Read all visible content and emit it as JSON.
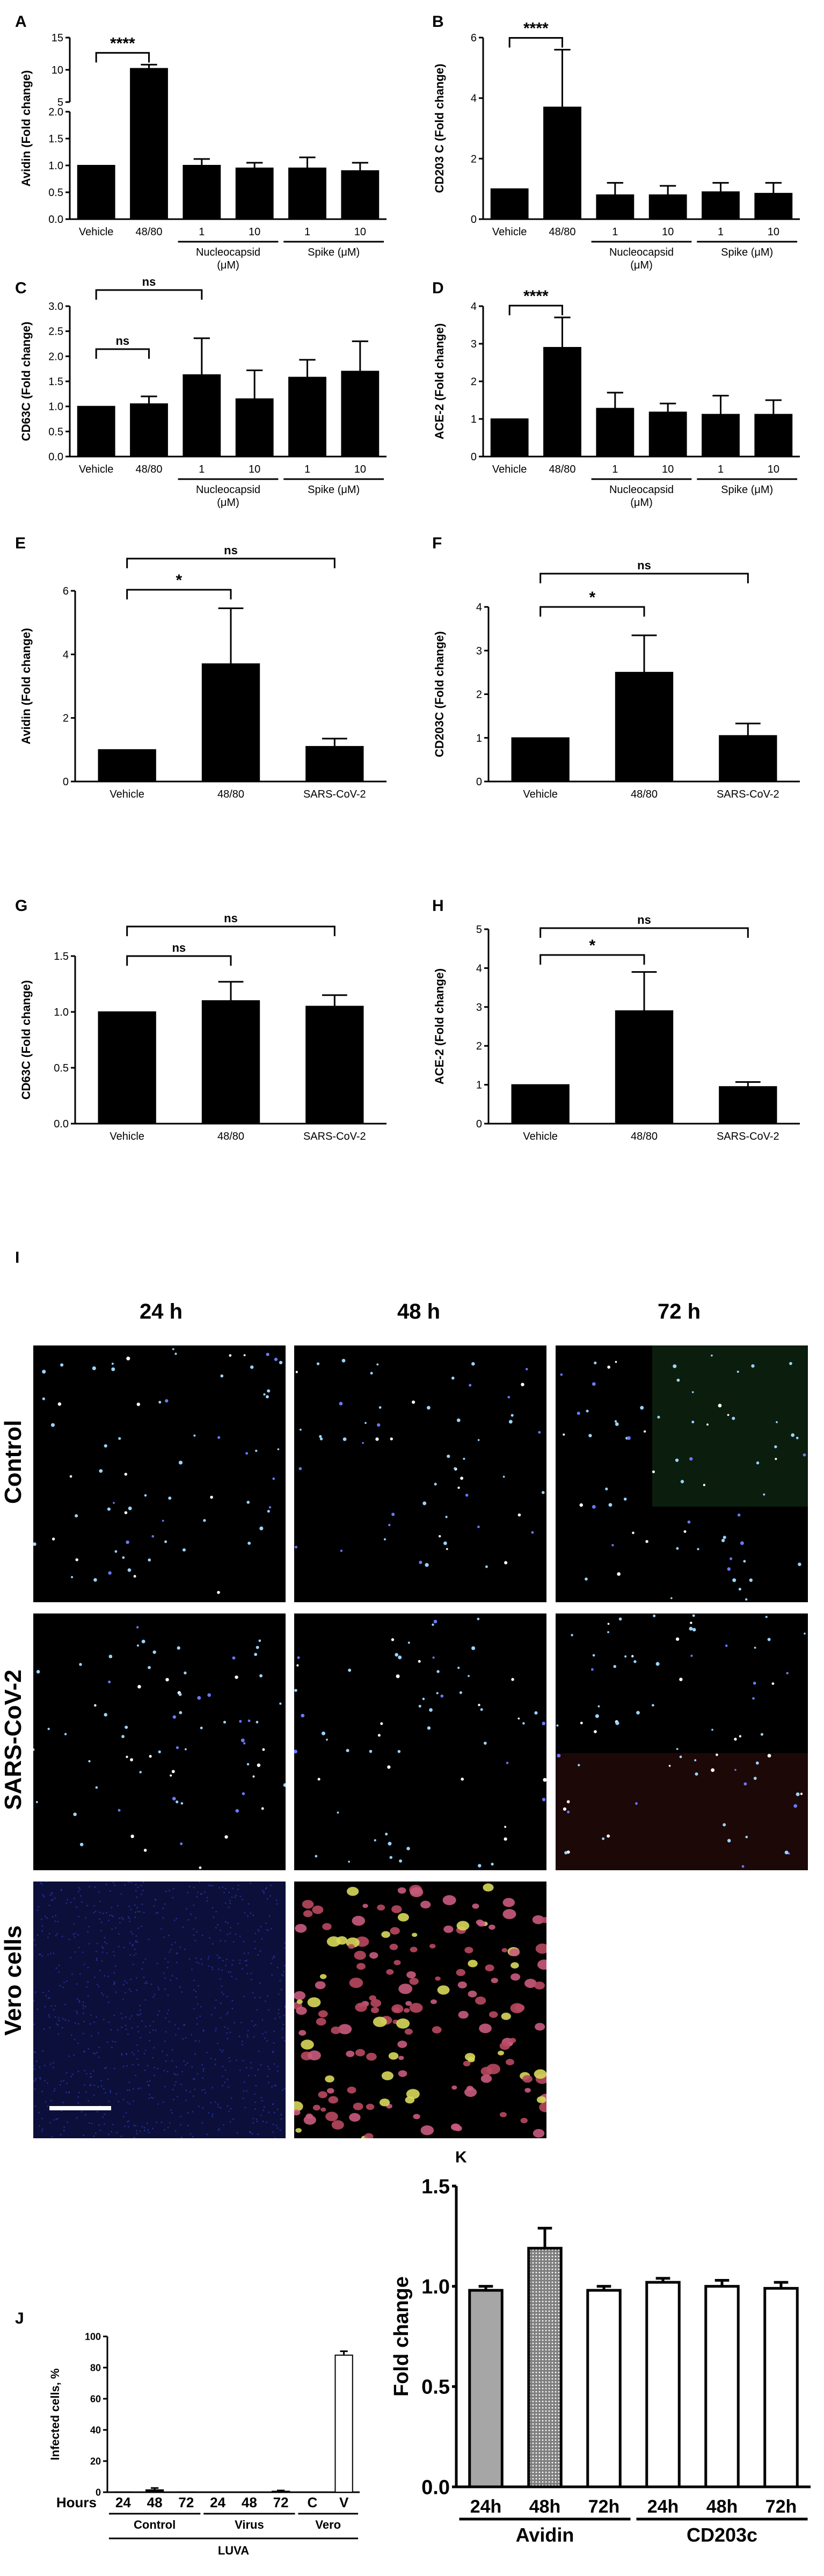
{
  "chart_data": [
    {
      "panel": "A",
      "type": "bar",
      "broken_axis": true,
      "categories": [
        "Vehicle",
        "48/80",
        "1",
        "10",
        "1",
        "10"
      ],
      "values": [
        1.0,
        10.2,
        1.0,
        0.95,
        0.95,
        0.9
      ],
      "errors": [
        0,
        0.6,
        0.12,
        0.1,
        0.2,
        0.15
      ],
      "groups": [
        {
          "label": "Nucleocapsid",
          "sublabel": "(μM)",
          "span": [
            2,
            3
          ]
        },
        {
          "label": "Spike (μM)",
          "span": [
            4,
            5
          ]
        }
      ],
      "ylabel": "Avidin (Fold change)",
      "ylim": [
        0,
        15
      ],
      "yticks": [
        "0.0",
        "0.5",
        "1.0",
        "1.5",
        "2.0",
        "5",
        "10",
        "15"
      ],
      "comparisons": [
        {
          "from": 0,
          "to": 1,
          "label": "****"
        }
      ]
    },
    {
      "panel": "B",
      "type": "bar",
      "categories": [
        "Vehicle",
        "48/80",
        "1",
        "10",
        "1",
        "10"
      ],
      "values": [
        1.0,
        3.7,
        0.8,
        0.8,
        0.9,
        0.85
      ],
      "errors": [
        0,
        1.9,
        0.4,
        0.3,
        0.3,
        0.35
      ],
      "groups": [
        {
          "label": "Nucleocapsid",
          "sublabel": "(μM)",
          "span": [
            2,
            3
          ]
        },
        {
          "label": "Spike (μM)",
          "span": [
            4,
            5
          ]
        }
      ],
      "ylabel": "CD203 C (Fold change)",
      "ylim": [
        0,
        6
      ],
      "yticks": [
        "0",
        "2",
        "4",
        "6"
      ],
      "comparisons": [
        {
          "from": 0,
          "to": 1,
          "label": "****"
        }
      ]
    },
    {
      "panel": "C",
      "type": "bar",
      "categories": [
        "Vehicle",
        "48/80",
        "1",
        "10",
        "1",
        "10"
      ],
      "values": [
        1.0,
        1.05,
        1.63,
        1.15,
        1.58,
        1.7
      ],
      "errors": [
        0,
        0.15,
        0.73,
        0.57,
        0.35,
        0.6
      ],
      "groups": [
        {
          "label": "Nucleocapsid",
          "sublabel": "(μM)",
          "span": [
            2,
            3
          ]
        },
        {
          "label": "Spike (μM)",
          "span": [
            4,
            5
          ]
        }
      ],
      "ylabel": "CD63C (Fold change)",
      "ylim": [
        0,
        3
      ],
      "yticks": [
        "0.0",
        "0.5",
        "1.0",
        "1.5",
        "2.0",
        "2.5",
        "3.0"
      ],
      "comparisons": [
        {
          "from": 0,
          "to": 1,
          "label": "ns"
        },
        {
          "from": 0,
          "to": 2,
          "label": "ns"
        }
      ]
    },
    {
      "panel": "D",
      "type": "bar",
      "categories": [
        "Vehicle",
        "48/80",
        "1",
        "10",
        "1",
        "10"
      ],
      "values": [
        1.0,
        2.9,
        1.28,
        1.18,
        1.12,
        1.12
      ],
      "errors": [
        0,
        0.8,
        0.42,
        0.23,
        0.5,
        0.38
      ],
      "groups": [
        {
          "label": "Nucleocapsid",
          "sublabel": "(μM)",
          "span": [
            2,
            3
          ]
        },
        {
          "label": "Spike (μM)",
          "span": [
            4,
            5
          ]
        }
      ],
      "ylabel": "ACE-2 (Fold change)",
      "ylim": [
        0,
        4
      ],
      "yticks": [
        "0",
        "1",
        "2",
        "3",
        "4"
      ],
      "comparisons": [
        {
          "from": 0,
          "to": 1,
          "label": "****"
        }
      ]
    },
    {
      "panel": "E",
      "type": "bar",
      "categories": [
        "Vehicle",
        "48/80",
        "SARS-CoV-2"
      ],
      "values": [
        1.0,
        3.7,
        1.1
      ],
      "errors": [
        0,
        1.75,
        0.25
      ],
      "ylabel": "Avidin (Fold change)",
      "ylim": [
        0,
        6
      ],
      "yticks": [
        "0",
        "2",
        "4",
        "6"
      ],
      "comparisons": [
        {
          "from": 0,
          "to": 1,
          "label": "*"
        },
        {
          "from": 0,
          "to": 2,
          "label": "ns"
        }
      ]
    },
    {
      "panel": "F",
      "type": "bar",
      "categories": [
        "Vehicle",
        "48/80",
        "SARS-CoV-2"
      ],
      "values": [
        1.0,
        2.5,
        1.05
      ],
      "errors": [
        0,
        0.85,
        0.28
      ],
      "ylabel": "CD203C (Fold change)",
      "ylim": [
        0,
        4
      ],
      "yticks": [
        "0",
        "1",
        "2",
        "3",
        "4"
      ],
      "comparisons": [
        {
          "from": 0,
          "to": 1,
          "label": "*"
        },
        {
          "from": 0,
          "to": 2,
          "label": "ns"
        }
      ]
    },
    {
      "panel": "G",
      "type": "bar",
      "categories": [
        "Vehicle",
        "48/80",
        "SARS-CoV-2"
      ],
      "values": [
        1.0,
        1.1,
        1.05
      ],
      "errors": [
        0,
        0.17,
        0.1
      ],
      "ylabel": "CD63C (Fold change)",
      "ylim": [
        0,
        1.5
      ],
      "yticks": [
        "0.0",
        "0.5",
        "1.0",
        "1.5"
      ],
      "comparisons": [
        {
          "from": 0,
          "to": 1,
          "label": "ns"
        },
        {
          "from": 0,
          "to": 2,
          "label": "ns"
        }
      ]
    },
    {
      "panel": "H",
      "type": "bar",
      "categories": [
        "Vehicle",
        "48/80",
        "SARS-CoV-2"
      ],
      "values": [
        1.0,
        2.9,
        0.95
      ],
      "errors": [
        0,
        1.0,
        0.12
      ],
      "ylabel": "ACE-2 (Fold change)",
      "ylim": [
        0,
        5
      ],
      "yticks": [
        "0",
        "1",
        "2",
        "3",
        "4",
        "5"
      ],
      "comparisons": [
        {
          "from": 0,
          "to": 1,
          "label": "*"
        },
        {
          "from": 0,
          "to": 2,
          "label": "ns"
        }
      ]
    },
    {
      "panel": "J",
      "type": "bar",
      "categories": [
        "24",
        "48",
        "72",
        "24",
        "48",
        "72",
        "C",
        "V"
      ],
      "values": [
        0.2,
        1.5,
        0.2,
        0.1,
        0.1,
        0.6,
        0,
        88
      ],
      "errors": [
        0,
        1.2,
        0,
        0,
        0,
        0.5,
        0,
        2.5
      ],
      "groups": [
        {
          "label": "Control",
          "span": [
            0,
            2
          ]
        },
        {
          "label": "Virus",
          "span": [
            3,
            5
          ]
        },
        {
          "label": "Vero",
          "span": [
            6,
            7
          ]
        }
      ],
      "supergroup": "LUVA",
      "row_label": "Hours",
      "ylabel": "Infected cells, %",
      "ylim": [
        0,
        100
      ],
      "yticks": [
        "0",
        "20",
        "40",
        "60",
        "80",
        "100"
      ]
    },
    {
      "panel": "K",
      "type": "bar",
      "categories": [
        "24h",
        "48h",
        "72h",
        "24h",
        "48h",
        "72h"
      ],
      "values": [
        0.98,
        1.19,
        0.98,
        1.02,
        1.0,
        0.99
      ],
      "errors": [
        0.02,
        0.1,
        0.02,
        0.02,
        0.03,
        0.03
      ],
      "fills": [
        "gray",
        "hatched",
        "white",
        "white",
        "white",
        "white"
      ],
      "groups": [
        {
          "label": "Avidin",
          "span": [
            0,
            2
          ]
        },
        {
          "label": "CD203c",
          "span": [
            3,
            5
          ]
        }
      ],
      "ylabel": "Fold change",
      "ylim": [
        0,
        1.5
      ],
      "yticks": [
        "0.0",
        "0.5",
        "1.0",
        "1.5"
      ]
    }
  ],
  "panel_i": {
    "label": "I",
    "columns": [
      "24 h",
      "48 h",
      "72 h"
    ],
    "rows": [
      "Control",
      "SARS-CoV-2",
      "Vero cells"
    ]
  },
  "colors": {
    "bar_fill": "#000000",
    "k_gray": "#a6a6a6",
    "micro_bg": "#000000"
  }
}
